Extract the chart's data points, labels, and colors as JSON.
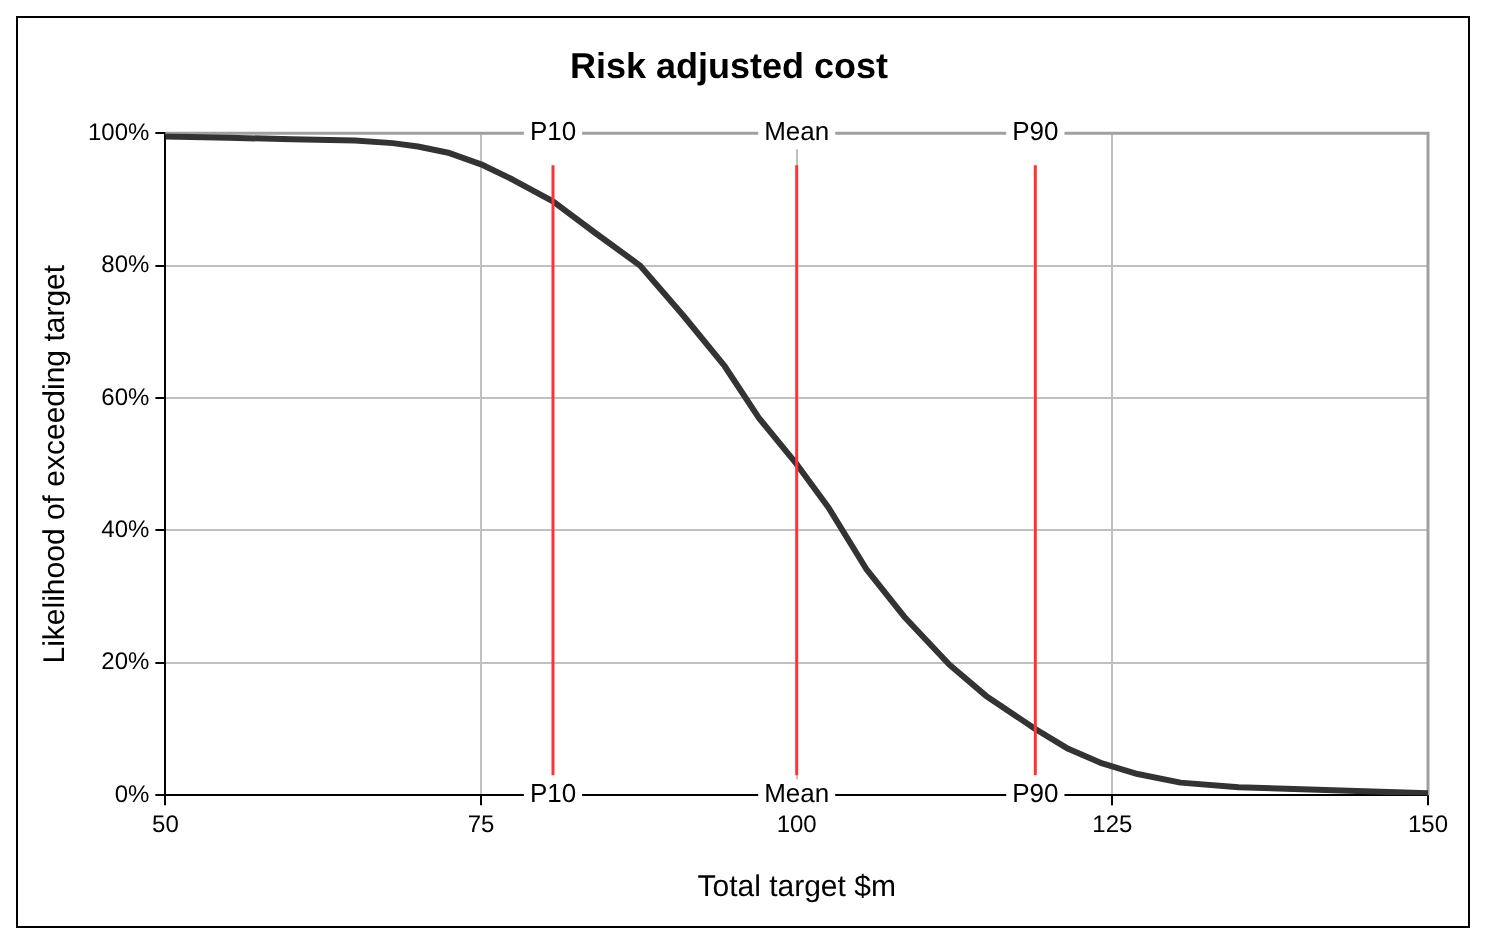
{
  "chart_data": {
    "type": "line",
    "title": "Risk adjusted cost",
    "xlabel": "Total target $m",
    "ylabel": "Likelihood of exceeding target",
    "series": [
      {
        "color": "#333333",
        "x": [
          50,
          55,
          60,
          65,
          68,
          70,
          72.5,
          75,
          77.5,
          80.7,
          84,
          87.6,
          91,
          94.3,
          97,
          100,
          102.5,
          105.5,
          108.5,
          112.1,
          115,
          118.9,
          121.5,
          124.2,
          127,
          130.4,
          135,
          140,
          145,
          150
        ],
        "values": [
          99.5,
          99.3,
          99.1,
          98.9,
          98.5,
          98,
          97,
          95.3,
          93,
          89.7,
          85,
          80,
          72.5,
          64.8,
          57,
          50,
          43.5,
          34.2,
          27,
          19.7,
          15,
          10,
          7,
          4.8,
          3.2,
          1.9,
          1.2,
          0.9,
          0.6,
          0.3
        ]
      }
    ],
    "xlim": [
      50,
      150
    ],
    "xticks": [
      50,
      75,
      100,
      125,
      150
    ],
    "ylim": [
      0,
      100
    ],
    "yticks": [
      {
        "value": 0,
        "label": "0%"
      },
      {
        "value": 20,
        "label": "20%"
      },
      {
        "value": 40,
        "label": "40%"
      },
      {
        "value": 60,
        "label": "60%"
      },
      {
        "value": 80,
        "label": "80%"
      },
      {
        "value": 100,
        "label": "100%"
      }
    ],
    "grid": true,
    "legend": false,
    "marker": "none",
    "line_style": "solid",
    "ref_lines": [
      {
        "axis": "x",
        "value": 80.7,
        "label": "P10",
        "color": "#ff3333"
      },
      {
        "axis": "x",
        "value": 100,
        "label": "Mean",
        "color": "#ff3333"
      },
      {
        "axis": "x",
        "value": 118.9,
        "label": "P90",
        "color": "#ff3333"
      }
    ]
  }
}
